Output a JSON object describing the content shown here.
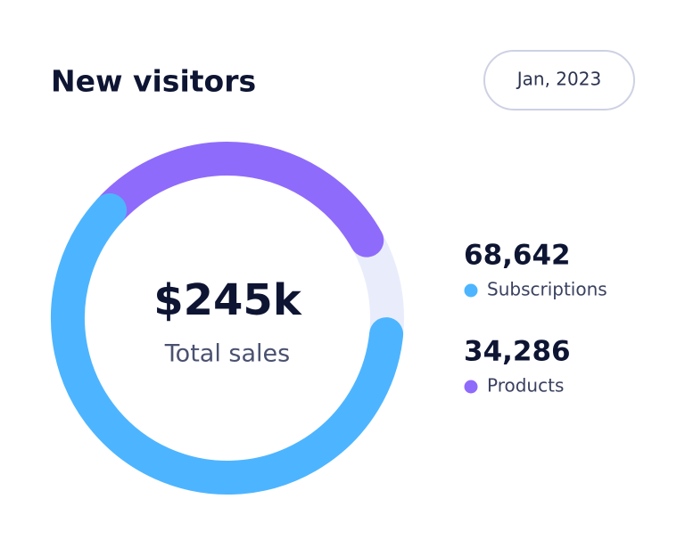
{
  "chart_data": {
    "type": "donut",
    "title": "New visitors",
    "period": "Jan, 2023",
    "center_value": "$245k",
    "center_label": "Total sales",
    "categories": [
      "Subscriptions",
      "Products"
    ],
    "values": [
      68642,
      34286
    ],
    "value_labels": [
      "68,642",
      "34,286"
    ],
    "colors": [
      "#4db5ff",
      "#8f6bfb"
    ],
    "track_color": "#e9edfb"
  }
}
